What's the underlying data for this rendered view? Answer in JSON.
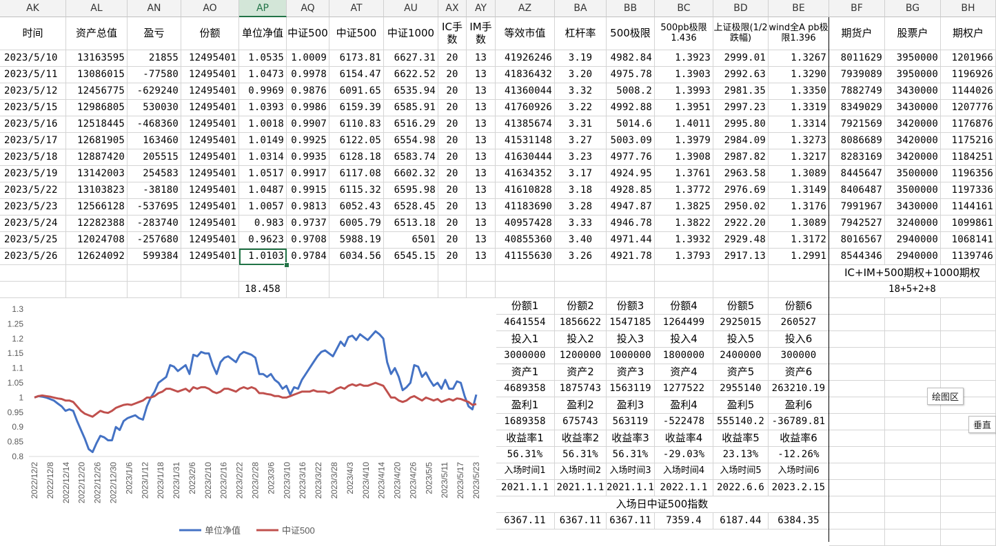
{
  "columns": [
    "AK",
    "AL",
    "AN",
    "AO",
    "AP",
    "AQ",
    "AT",
    "AU",
    "AX",
    "AY",
    "AZ",
    "BA",
    "BB",
    "BC",
    "BD",
    "BE",
    "BF",
    "BG",
    "BH"
  ],
  "active_column": "AP",
  "headers": [
    "时间",
    "资产总值",
    "盈亏",
    "份额",
    "单位净值",
    "中证500",
    "中证500",
    "中证1000",
    "IC手数",
    "IM手数",
    "等效市值",
    "杠杆率",
    "500极限",
    "500pb极限1.436",
    "上证极限(1/2跌幅)",
    "wind全A pb极限1.396",
    "期货户",
    "股票户",
    "期权户"
  ],
  "rows": [
    [
      "2023/5/10",
      "13163595",
      "21855",
      "12495401",
      "1.0535",
      "1.0009",
      "6173.81",
      "6627.31",
      "20",
      "13",
      "41926246",
      "3.19",
      "4982.84",
      "1.3923",
      "2999.01",
      "1.3267",
      "8011629",
      "3950000",
      "1201966"
    ],
    [
      "2023/5/11",
      "13086015",
      "-77580",
      "12495401",
      "1.0473",
      "0.9978",
      "6154.47",
      "6622.52",
      "20",
      "13",
      "41836432",
      "3.20",
      "4975.78",
      "1.3903",
      "2992.63",
      "1.3290",
      "7939089",
      "3950000",
      "1196926"
    ],
    [
      "2023/5/12",
      "12456775",
      "-629240",
      "12495401",
      "0.9969",
      "0.9876",
      "6091.65",
      "6535.94",
      "20",
      "13",
      "41360044",
      "3.32",
      "5008.2",
      "1.3993",
      "2981.35",
      "1.3350",
      "7882749",
      "3430000",
      "1144026"
    ],
    [
      "2023/5/15",
      "12986805",
      "530030",
      "12495401",
      "1.0393",
      "0.9986",
      "6159.39",
      "6585.91",
      "20",
      "13",
      "41760926",
      "3.22",
      "4992.88",
      "1.3951",
      "2997.23",
      "1.3319",
      "8349029",
      "3430000",
      "1207776"
    ],
    [
      "2023/5/16",
      "12518445",
      "-468360",
      "12495401",
      "1.0018",
      "0.9907",
      "6110.83",
      "6516.29",
      "20",
      "13",
      "41385674",
      "3.31",
      "5014.6",
      "1.4011",
      "2995.80",
      "1.3314",
      "7921569",
      "3420000",
      "1176876"
    ],
    [
      "2023/5/17",
      "12681905",
      "163460",
      "12495401",
      "1.0149",
      "0.9925",
      "6122.05",
      "6554.98",
      "20",
      "13",
      "41531148",
      "3.27",
      "5003.09",
      "1.3979",
      "2984.09",
      "1.3273",
      "8086689",
      "3420000",
      "1175216"
    ],
    [
      "2023/5/18",
      "12887420",
      "205515",
      "12495401",
      "1.0314",
      "0.9935",
      "6128.18",
      "6583.74",
      "20",
      "13",
      "41630444",
      "3.23",
      "4977.76",
      "1.3908",
      "2987.82",
      "1.3217",
      "8283169",
      "3420000",
      "1184251"
    ],
    [
      "2023/5/19",
      "13142003",
      "254583",
      "12495401",
      "1.0517",
      "0.9917",
      "6117.08",
      "6602.32",
      "20",
      "13",
      "41634352",
      "3.17",
      "4924.95",
      "1.3761",
      "2963.58",
      "1.3089",
      "8445647",
      "3500000",
      "1196356"
    ],
    [
      "2023/5/22",
      "13103823",
      "-38180",
      "12495401",
      "1.0487",
      "0.9915",
      "6115.32",
      "6595.98",
      "20",
      "13",
      "41610828",
      "3.18",
      "4928.85",
      "1.3772",
      "2976.69",
      "1.3149",
      "8406487",
      "3500000",
      "1197336"
    ],
    [
      "2023/5/23",
      "12566128",
      "-537695",
      "12495401",
      "1.0057",
      "0.9813",
      "6052.43",
      "6528.45",
      "20",
      "13",
      "41183690",
      "3.28",
      "4947.87",
      "1.3825",
      "2950.02",
      "1.3176",
      "7991967",
      "3430000",
      "1144161"
    ],
    [
      "2023/5/24",
      "12282388",
      "-283740",
      "12495401",
      "0.983",
      "0.9737",
      "6005.79",
      "6513.18",
      "20",
      "13",
      "40957428",
      "3.33",
      "4946.78",
      "1.3822",
      "2922.20",
      "1.3089",
      "7942527",
      "3240000",
      "1099861"
    ],
    [
      "2023/5/25",
      "12024708",
      "-257680",
      "12495401",
      "0.9623",
      "0.9708",
      "5988.19",
      "6501",
      "20",
      "13",
      "40855360",
      "3.40",
      "4971.44",
      "1.3932",
      "2929.48",
      "1.3172",
      "8016567",
      "2940000",
      "1068141"
    ],
    [
      "2023/5/26",
      "12624092",
      "599384",
      "12495401",
      "1.0103",
      "0.9784",
      "6034.56",
      "6545.15",
      "20",
      "13",
      "41155630",
      "3.26",
      "4921.78",
      "1.3793",
      "2917.13",
      "1.2991",
      "8544346",
      "2940000",
      "1139746"
    ]
  ],
  "note_row1": "IC+IM+500期权+1000期权",
  "sum_value": "18.458",
  "note_row2": "18+5+2+8",
  "investor_table": {
    "share_labels": [
      "份额1",
      "份额2",
      "份额3",
      "份额4",
      "份额5",
      "份额6"
    ],
    "shares": [
      "4641554",
      "1856622",
      "1547185",
      "1264499",
      "2925015",
      "260527"
    ],
    "invest_labels": [
      "投入1",
      "投入2",
      "投入3",
      "投入4",
      "投入5",
      "投入6"
    ],
    "invests": [
      "3000000",
      "1200000",
      "1000000",
      "1800000",
      "2400000",
      "300000"
    ],
    "asset_labels": [
      "资产1",
      "资产2",
      "资产3",
      "资产4",
      "资产5",
      "资产6"
    ],
    "assets": [
      "4689358",
      "1875743",
      "1563119",
      "1277522",
      "2955140",
      "263210.19"
    ],
    "profit_labels": [
      "盈利1",
      "盈利2",
      "盈利3",
      "盈利4",
      "盈利5",
      "盈利6"
    ],
    "profits": [
      "1689358",
      "675743",
      "563119",
      "-522478",
      "555140.2",
      "-36789.81"
    ],
    "return_labels": [
      "收益率1",
      "收益率2",
      "收益率3",
      "收益率4",
      "收益率5",
      "收益率6"
    ],
    "returns": [
      "56.31%",
      "56.31%",
      "56.31%",
      "-29.03%",
      "23.13%",
      "-12.26%"
    ],
    "entry_labels": [
      "入场时间1",
      "入场时间2",
      "入场时间3",
      "入场时间4",
      "入场时间5",
      "入场时间6"
    ],
    "entries": [
      "2021.1.1",
      "2021.1.1",
      "2021.1.1",
      "2022.1.1",
      "2022.6.6",
      "2023.2.15"
    ],
    "index_title": "入场日中证500指数",
    "index_values": [
      "6367.11",
      "6367.11",
      "6367.11",
      "7359.4",
      "6187.44",
      "6384.35"
    ]
  },
  "buttons": {
    "plot_area": "绘图区",
    "vertical": "垂直"
  },
  "chart_data": {
    "type": "line",
    "ylim": [
      0.8,
      1.3
    ],
    "yticks": [
      0.8,
      0.85,
      0.9,
      0.95,
      1,
      1.05,
      1.1,
      1.15,
      1.2,
      1.25,
      1.3
    ],
    "xtick_labels": [
      "2022/12/2",
      "2022/12/8",
      "2022/12/14",
      "2022/12/20",
      "2022/12/26",
      "2022/12/30",
      "2023/1/6",
      "2023/1/12",
      "2023/1/18",
      "2023/1/31",
      "2023/2/6",
      "2023/2/10",
      "2023/2/16",
      "2023/2/22",
      "2023/2/28",
      "2023/3/6",
      "2023/3/10",
      "2023/3/16",
      "2023/3/22",
      "2023/3/28",
      "2023/4/3",
      "2023/4/10",
      "2023/4/14",
      "2023/4/20",
      "2023/4/26",
      "2023/5/5",
      "2023/5/11",
      "2023/5/17",
      "2023/5/23"
    ],
    "series": [
      {
        "name": "单位净值",
        "color": "#4472c4",
        "values": [
          1.0,
          1.005,
          1.003,
          1.0,
          0.995,
          0.99,
          0.98,
          0.97,
          0.955,
          0.96,
          0.955,
          0.92,
          0.89,
          0.86,
          0.825,
          0.815,
          0.845,
          0.87,
          0.865,
          0.855,
          0.855,
          0.9,
          0.89,
          0.92,
          0.93,
          0.935,
          0.94,
          0.93,
          0.925,
          0.97,
          1.0,
          1.02,
          1.05,
          1.06,
          1.07,
          1.11,
          1.105,
          1.09,
          1.1,
          1.11,
          1.08,
          1.145,
          1.14,
          1.155,
          1.15,
          1.15,
          1.11,
          1.08,
          1.12,
          1.135,
          1.14,
          1.13,
          1.12,
          1.145,
          1.155,
          1.15,
          1.145,
          1.135,
          1.08,
          1.08,
          1.07,
          1.08,
          1.06,
          1.05,
          1.03,
          1.04,
          1.01,
          1.035,
          1.03,
          1.06,
          1.08,
          1.1,
          1.12,
          1.14,
          1.155,
          1.16,
          1.15,
          1.14,
          1.165,
          1.19,
          1.175,
          1.205,
          1.21,
          1.195,
          1.215,
          1.205,
          1.195,
          1.21,
          1.225,
          1.215,
          1.2,
          1.12,
          1.08,
          1.1,
          1.07,
          1.025,
          1.035,
          1.05,
          1.11,
          1.105,
          1.07,
          1.085,
          1.06,
          1.04,
          1.05,
          1.03,
          1.06,
          1.03,
          1.03,
          1.055,
          1.05,
          1.005,
          0.97,
          0.96,
          1.01
        ]
      },
      {
        "name": "中证500",
        "color": "#c0504d",
        "values": [
          1.0,
          1.005,
          1.007,
          1.005,
          1.003,
          1.0,
          0.997,
          0.995,
          0.99,
          0.99,
          0.985,
          0.97,
          0.955,
          0.945,
          0.94,
          0.935,
          0.945,
          0.955,
          0.95,
          0.948,
          0.955,
          0.965,
          0.97,
          0.975,
          0.977,
          0.975,
          0.98,
          0.985,
          0.99,
          1.0,
          1.0,
          1.005,
          1.015,
          1.02,
          1.03,
          1.03,
          1.025,
          1.02,
          1.025,
          1.03,
          1.02,
          1.035,
          1.03,
          1.035,
          1.035,
          1.03,
          1.02,
          1.015,
          1.02,
          1.03,
          1.03,
          1.025,
          1.02,
          1.03,
          1.035,
          1.03,
          1.035,
          1.03,
          1.015,
          1.015,
          1.012,
          1.01,
          1.005,
          1.005,
          1.0,
          1.0,
          1.005,
          1.01,
          1.015,
          1.02,
          1.02,
          1.02,
          1.025,
          1.02,
          1.02,
          1.02,
          1.015,
          1.02,
          1.03,
          1.035,
          1.03,
          1.04,
          1.045,
          1.04,
          1.045,
          1.04,
          1.04,
          1.045,
          1.05,
          1.045,
          1.04,
          1.02,
          1.0,
          1.0,
          0.99,
          0.985,
          0.99,
          1.0,
          1.005,
          0.997,
          0.99,
          1.0,
          0.995,
          0.99,
          0.995,
          0.985,
          0.99,
          0.995,
          0.99,
          0.997,
          0.995,
          0.99,
          0.985,
          0.975,
          0.978
        ]
      }
    ]
  }
}
